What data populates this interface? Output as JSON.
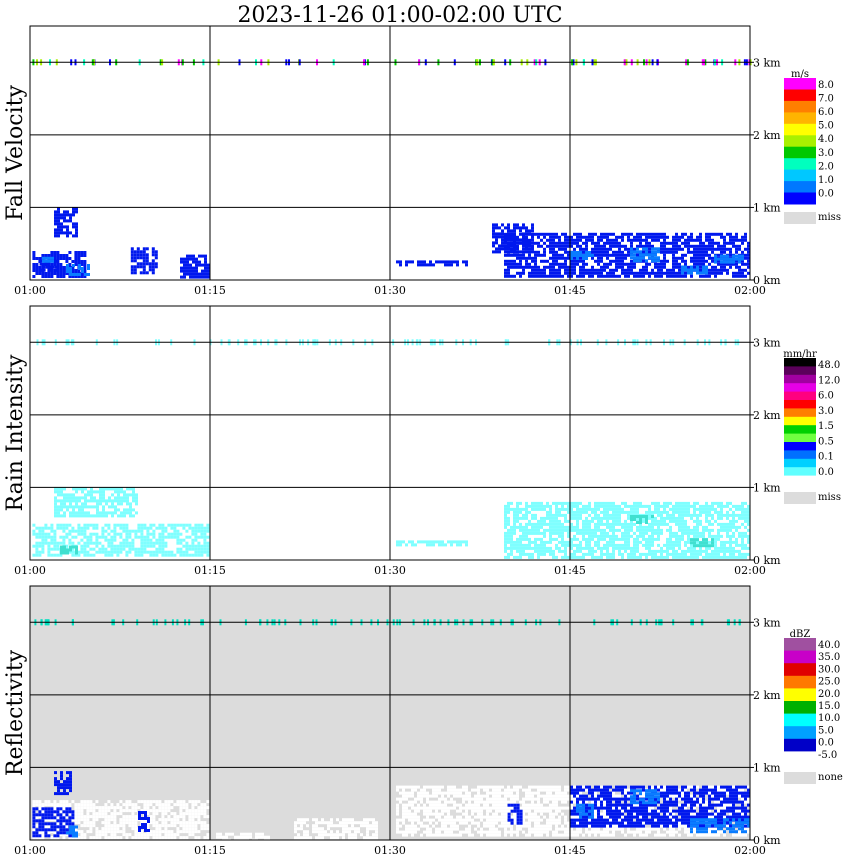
{
  "chart_data": {
    "type": "heatmap",
    "title": "2023-11-26   01:00-02:00 UTC",
    "x_ticks": [
      "01:00",
      "01:15",
      "01:30",
      "01:45",
      "02:00"
    ],
    "x_range_minutes": [
      0,
      60
    ],
    "y_ticks": [
      "0 km",
      "1 km",
      "2 km",
      "3 km"
    ],
    "y_range_km": [
      0,
      3.5
    ],
    "panels": [
      {
        "name": "fall-velocity",
        "ylabel": "Fall Velocity",
        "background": "#ffffff",
        "unit": "m/s",
        "legend_labels": [
          "8.0",
          "7.0",
          "6.0",
          "5.0",
          "4.0",
          "3.0",
          "2.0",
          "1.0",
          "0.0"
        ],
        "legend_colors": [
          "#ff00ff",
          "#ff0000",
          "#ff7f00",
          "#ffb400",
          "#ffff00",
          "#a8f000",
          "#00c800",
          "#00ffbe",
          "#00c8ff",
          "#0078ff",
          "#0000ff"
        ],
        "missing_label": "miss",
        "missing_color": "#dcdcdc",
        "layers": [
          {
            "color": "#0018ee",
            "cells": [
              [
                0.2,
                0.05,
                4.5,
                0.4
              ],
              [
                0.8,
                0.12,
                2.3,
                0.28
              ],
              [
                2.0,
                0.6,
                4.0,
                1.0
              ],
              [
                8.4,
                0.08,
                10.5,
                0.45
              ],
              [
                12.5,
                0.05,
                14.8,
                0.35
              ],
              [
                30.5,
                0.22,
                36.5,
                0.27
              ],
              [
                39.5,
                0.05,
                60,
                0.65
              ],
              [
                38.5,
                0.4,
                42.0,
                0.78
              ]
            ]
          },
          {
            "color": "#0a7cff",
            "cells": [
              [
                3.0,
                0.08,
                4.8,
                0.22
              ],
              [
                1.0,
                0.25,
                2.0,
                0.32
              ],
              [
                45.0,
                0.3,
                47.0,
                0.4
              ],
              [
                50.0,
                0.25,
                52.5,
                0.45
              ],
              [
                54.0,
                0.1,
                56.5,
                0.2
              ],
              [
                57.0,
                0.25,
                59.5,
                0.35
              ]
            ]
          }
        ]
      },
      {
        "name": "rain-intensity",
        "ylabel": "Rain Intensity",
        "background": "#ffffff",
        "unit": "mm/hr",
        "legend_labels": [
          "48.0",
          "12.0",
          "6.0",
          "3.0",
          "1.5",
          "0.5",
          "0.1",
          "0.0"
        ],
        "legend_colors": [
          "#000000",
          "#5a005a",
          "#a000a0",
          "#e600e6",
          "#ff0080",
          "#ff0000",
          "#ff7f00",
          "#ffff00",
          "#00d000",
          "#70ff40",
          "#0000ff",
          "#0070ff",
          "#00d0ff",
          "#60ffff",
          "#ffffff"
        ],
        "missing_label": "miss",
        "missing_color": "#dcdcdc",
        "layers": [
          {
            "color": "#7fffff",
            "cells": [
              [
                0.2,
                0.05,
                14.8,
                0.5
              ],
              [
                2.0,
                0.6,
                9.0,
                1.0
              ],
              [
                30.5,
                0.22,
                36.5,
                0.27
              ],
              [
                39.5,
                0.05,
                60,
                0.8
              ]
            ]
          },
          {
            "color": "#40e0d0",
            "cells": [
              [
                2.5,
                0.08,
                4.0,
                0.2
              ],
              [
                50.0,
                0.5,
                52.0,
                0.62
              ],
              [
                55.0,
                0.2,
                57.0,
                0.3
              ]
            ]
          }
        ]
      },
      {
        "name": "reflectivity",
        "ylabel": "Reflectivity",
        "background": "#dcdcdc",
        "unit": "dBZ",
        "legend_labels": [
          "40.0",
          "35.0",
          "30.0",
          "25.0",
          "20.0",
          "15.0",
          "10.0",
          "5.0",
          "0.0",
          "-5.0"
        ],
        "legend_colors": [
          "#a050a0",
          "#c800c8",
          "#e00000",
          "#ff7800",
          "#ffff00",
          "#00b000",
          "#00ffff",
          "#00a0ff",
          "#0000c8",
          "#ffffff"
        ],
        "missing_label": "none",
        "missing_color": "#dcdcdc",
        "layers": [
          {
            "color": "#ffffff",
            "cells": [
              [
                0.2,
                0.05,
                14.8,
                0.55
              ],
              [
                15.5,
                0.0,
                20.0,
                0.1
              ],
              [
                22.0,
                0.05,
                29.0,
                0.3
              ],
              [
                30.5,
                0.05,
                60,
                0.75
              ]
            ]
          },
          {
            "color": "#0018ee",
            "cells": [
              [
                0.2,
                0.05,
                3.5,
                0.45
              ],
              [
                2.0,
                0.65,
                3.5,
                0.95
              ],
              [
                9.0,
                0.15,
                10.0,
                0.4
              ],
              [
                39.8,
                0.25,
                41.0,
                0.5
              ],
              [
                45.0,
                0.2,
                60,
                0.75
              ]
            ]
          },
          {
            "color": "#0a7cff",
            "cells": [
              [
                3.0,
                0.05,
                4.0,
                0.2
              ],
              [
                45.5,
                0.3,
                47.0,
                0.5
              ],
              [
                50.0,
                0.5,
                52.5,
                0.7
              ],
              [
                55.0,
                0.1,
                60,
                0.3
              ]
            ]
          }
        ]
      }
    ],
    "top_layer_colors": [
      "#a8f000",
      "#00c800",
      "#ff00ff",
      "#0000ff",
      "#00ffbe"
    ]
  }
}
